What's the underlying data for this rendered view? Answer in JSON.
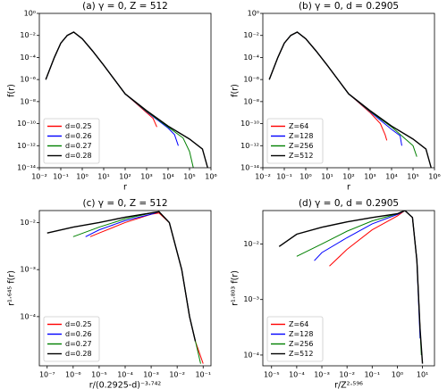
{
  "chart_data": [
    {
      "type": "line",
      "title": "(a) γ = 0, Z = 512",
      "xlabel": "r",
      "ylabel": "f(r)",
      "log_x": true,
      "log_y": true,
      "legend": "lower left",
      "xlim": [
        0.01,
        1000000
      ],
      "ylim": [
        1e-14,
        1
      ],
      "xticks": [
        {
          "value": 0.01,
          "label": "10⁻²"
        },
        {
          "value": 0.1,
          "label": "10⁻¹"
        },
        {
          "value": 1,
          "label": "10⁰"
        },
        {
          "value": 10,
          "label": "10¹"
        },
        {
          "value": 100,
          "label": "10²"
        },
        {
          "value": 1000,
          "label": "10³"
        },
        {
          "value": 10000,
          "label": "10⁴"
        },
        {
          "value": 100000,
          "label": "10⁵"
        },
        {
          "value": 1000000,
          "label": "10⁶"
        }
      ],
      "yticks": [
        {
          "value": 1,
          "label": "10⁰"
        },
        {
          "value": 0.01,
          "label": "10⁻²"
        },
        {
          "value": 0.0001,
          "label": "10⁻⁴"
        },
        {
          "value": 1e-06,
          "label": "10⁻⁶"
        },
        {
          "value": 1e-08,
          "label": "10⁻⁸"
        },
        {
          "value": 1e-10,
          "label": "10⁻¹⁰"
        },
        {
          "value": 1e-12,
          "label": "10⁻¹²"
        },
        {
          "value": 1e-14,
          "label": "10⁻¹⁴"
        }
      ],
      "series": [
        {
          "name": "d=0.25",
          "color": "red",
          "x": [
            0.02,
            0.05,
            0.1,
            0.2,
            0.4,
            1,
            3,
            10,
            100,
            1000,
            2000,
            3000
          ],
          "values": [
            1e-06,
            0.0001,
            0.002,
            0.01,
            0.02,
            0.005,
            0.0004,
            2e-05,
            5e-08,
            1e-09,
            3e-10,
            5e-11
          ]
        },
        {
          "name": "d=0.26",
          "color": "blue",
          "x": [
            0.02,
            0.05,
            0.1,
            0.2,
            0.4,
            1,
            3,
            10,
            100,
            1000,
            10000,
            20000,
            30000
          ],
          "values": [
            1e-06,
            0.0001,
            0.002,
            0.01,
            0.02,
            0.005,
            0.0004,
            2e-05,
            5e-08,
            1.2e-09,
            4e-11,
            1e-11,
            1e-12
          ]
        },
        {
          "name": "d=0.27",
          "color": "green",
          "x": [
            0.02,
            0.05,
            0.1,
            0.2,
            0.4,
            1,
            3,
            10,
            100,
            1000,
            10000,
            50000,
            100000,
            150000
          ],
          "values": [
            1e-06,
            0.0001,
            0.002,
            0.01,
            0.02,
            0.005,
            0.0004,
            2e-05,
            5e-08,
            1.3e-09,
            5e-11,
            5e-12,
            3e-13,
            1e-14
          ]
        },
        {
          "name": "d=0.28",
          "color": "black",
          "x": [
            0.02,
            0.05,
            0.1,
            0.2,
            0.4,
            1,
            3,
            10,
            100,
            1000,
            10000,
            100000,
            400000,
            700000
          ],
          "values": [
            1e-06,
            0.0001,
            0.002,
            0.01,
            0.02,
            0.005,
            0.0004,
            2e-05,
            5e-08,
            1.5e-09,
            6e-11,
            4e-12,
            5e-13,
            1e-14
          ]
        }
      ]
    },
    {
      "type": "line",
      "title": "(b) γ = 0, d = 0.2905",
      "xlabel": "r",
      "ylabel": "f(r)",
      "log_x": true,
      "log_y": true,
      "legend": "lower left",
      "xlim": [
        0.01,
        1000000
      ],
      "ylim": [
        1e-14,
        1
      ],
      "xticks": [
        {
          "value": 0.01,
          "label": "10⁻²"
        },
        {
          "value": 0.1,
          "label": "10⁻¹"
        },
        {
          "value": 1,
          "label": "10⁰"
        },
        {
          "value": 10,
          "label": "10¹"
        },
        {
          "value": 100,
          "label": "10²"
        },
        {
          "value": 1000,
          "label": "10³"
        },
        {
          "value": 10000,
          "label": "10⁴"
        },
        {
          "value": 100000,
          "label": "10⁵"
        },
        {
          "value": 1000000,
          "label": "10⁶"
        }
      ],
      "yticks": [
        {
          "value": 1,
          "label": "10⁰"
        },
        {
          "value": 0.01,
          "label": "10⁻²"
        },
        {
          "value": 0.0001,
          "label": "10⁻⁴"
        },
        {
          "value": 1e-06,
          "label": "10⁻⁶"
        },
        {
          "value": 1e-08,
          "label": "10⁻⁸"
        },
        {
          "value": 1e-10,
          "label": "10⁻¹⁰"
        },
        {
          "value": 1e-12,
          "label": "10⁻¹²"
        },
        {
          "value": 1e-14,
          "label": "10⁻¹⁴"
        }
      ],
      "series": [
        {
          "name": "Z=64",
          "color": "red",
          "x": [
            0.02,
            0.05,
            0.1,
            0.2,
            0.4,
            1,
            3,
            10,
            100,
            1000,
            3000,
            5000,
            6000
          ],
          "values": [
            1e-06,
            0.0001,
            0.002,
            0.01,
            0.02,
            0.005,
            0.0004,
            2e-05,
            5e-08,
            1e-09,
            1e-10,
            1e-11,
            3e-12
          ]
        },
        {
          "name": "Z=128",
          "color": "blue",
          "x": [
            0.02,
            0.05,
            0.1,
            0.2,
            0.4,
            1,
            3,
            10,
            100,
            1000,
            10000,
            25000,
            30000
          ],
          "values": [
            1e-06,
            0.0001,
            0.002,
            0.01,
            0.02,
            0.005,
            0.0004,
            2e-05,
            5e-08,
            1.2e-09,
            3e-11,
            8e-12,
            1e-12
          ]
        },
        {
          "name": "Z=256",
          "color": "green",
          "x": [
            0.02,
            0.05,
            0.1,
            0.2,
            0.4,
            1,
            3,
            10,
            100,
            1000,
            10000,
            100000,
            150000
          ],
          "values": [
            1e-06,
            0.0001,
            0.002,
            0.01,
            0.02,
            0.005,
            0.0004,
            2e-05,
            5e-08,
            1.3e-09,
            5e-11,
            1e-12,
            1e-13
          ]
        },
        {
          "name": "Z=512",
          "color": "black",
          "x": [
            0.02,
            0.05,
            0.1,
            0.2,
            0.4,
            1,
            3,
            10,
            100,
            1000,
            10000,
            100000,
            400000,
            700000
          ],
          "values": [
            1e-06,
            0.0001,
            0.002,
            0.01,
            0.02,
            0.005,
            0.0004,
            2e-05,
            5e-08,
            1.5e-09,
            6e-11,
            4e-12,
            5e-13,
            1e-14
          ]
        }
      ]
    },
    {
      "type": "line",
      "title": "(c) γ = 0, Z = 512",
      "xlabel": "r/(0.2925-d)⁻³·⁷⁴²",
      "ylabel": "r¹·⁶⁴⁵ f(r)",
      "log_x": true,
      "log_y": true,
      "legend": "lower left",
      "xlim": [
        5e-08,
        0.2
      ],
      "ylim": [
        9e-06,
        0.018
      ],
      "xticks": [
        {
          "value": 1e-07,
          "label": "10⁻⁷"
        },
        {
          "value": 1e-06,
          "label": "10⁻⁶"
        },
        {
          "value": 1e-05,
          "label": "10⁻⁵"
        },
        {
          "value": 0.0001,
          "label": "10⁻⁴"
        },
        {
          "value": 0.001,
          "label": "10⁻³"
        },
        {
          "value": 0.01,
          "label": "10⁻²"
        },
        {
          "value": 0.1,
          "label": "10⁻¹"
        }
      ],
      "yticks": [
        {
          "value": 0.0001,
          "label": "10⁻⁴"
        },
        {
          "value": 0.001,
          "label": "10⁻³"
        },
        {
          "value": 0.01,
          "label": "10⁻²"
        }
      ],
      "series": [
        {
          "name": "d=0.25",
          "color": "red",
          "x": [
            4.5e-06,
            1e-05,
            0.0001,
            0.001,
            0.002,
            0.005,
            0.015,
            0.03,
            0.05,
            0.1
          ],
          "values": [
            0.005,
            0.006,
            0.01,
            0.015,
            0.016,
            0.01,
            0.001,
            0.0001,
            3e-05,
            1e-05
          ]
        },
        {
          "name": "d=0.26",
          "color": "blue",
          "x": [
            3e-06,
            1e-05,
            0.0001,
            0.001,
            0.002,
            0.005,
            0.015,
            0.03,
            0.05
          ],
          "values": [
            0.005,
            0.007,
            0.011,
            0.015,
            0.017,
            0.01,
            0.001,
            0.0001,
            3e-05
          ]
        },
        {
          "name": "d=0.27",
          "color": "green",
          "x": [
            1e-06,
            1e-05,
            0.0001,
            0.001,
            0.002,
            0.005,
            0.015,
            0.03,
            0.06,
            0.08
          ],
          "values": [
            0.005,
            0.008,
            0.012,
            0.016,
            0.017,
            0.01,
            0.001,
            0.0001,
            2e-05,
            1e-05
          ]
        },
        {
          "name": "d=0.28",
          "color": "black",
          "x": [
            1e-07,
            1e-06,
            1e-05,
            0.0001,
            0.001,
            0.002,
            0.005,
            0.015,
            0.03,
            0.05
          ],
          "values": [
            0.006,
            0.008,
            0.01,
            0.013,
            0.016,
            0.017,
            0.01,
            0.001,
            0.0001,
            3e-05
          ]
        }
      ]
    },
    {
      "type": "line",
      "title": "(d) γ = 0, d = 0.2905",
      "xlabel": "r/Z²·⁵⁹⁶",
      "ylabel": "r¹·⁸⁰³ f(r)",
      "log_x": true,
      "log_y": true,
      "legend": "lower left",
      "xlim": [
        4.5e-06,
        30
      ],
      "ylim": [
        6.4e-05,
        0.04
      ],
      "xticks": [
        {
          "value": 1e-05,
          "label": "10⁻⁵"
        },
        {
          "value": 0.0001,
          "label": "10⁻⁴"
        },
        {
          "value": 0.001,
          "label": "10⁻³"
        },
        {
          "value": 0.01,
          "label": "10⁻²"
        },
        {
          "value": 0.1,
          "label": "10⁻¹"
        },
        {
          "value": 1,
          "label": "10⁰"
        },
        {
          "value": 10,
          "label": "10¹"
        }
      ],
      "yticks": [
        {
          "value": 0.0001,
          "label": "10⁻⁴"
        },
        {
          "value": 0.001,
          "label": "10⁻³"
        },
        {
          "value": 0.01,
          "label": "10⁻²"
        }
      ],
      "series": [
        {
          "name": "Z=64",
          "color": "red",
          "x": [
            0.002,
            0.01,
            0.1,
            1,
            2,
            4,
            6,
            8
          ],
          "values": [
            0.004,
            0.008,
            0.018,
            0.032,
            0.04,
            0.03,
            0.005,
            0.0003
          ]
        },
        {
          "name": "Z=128",
          "color": "blue",
          "x": [
            0.0005,
            0.001,
            0.01,
            0.1,
            1,
            2,
            4,
            6,
            8
          ],
          "values": [
            0.005,
            0.007,
            0.013,
            0.023,
            0.034,
            0.04,
            0.03,
            0.005,
            0.0002
          ]
        },
        {
          "name": "Z=256",
          "color": "green",
          "x": [
            0.0001,
            0.001,
            0.01,
            0.1,
            1,
            2,
            4,
            6,
            8,
            9
          ],
          "values": [
            0.006,
            0.01,
            0.017,
            0.026,
            0.035,
            0.04,
            0.03,
            0.005,
            0.0003,
            0.0001
          ]
        },
        {
          "name": "Z=512",
          "color": "black",
          "x": [
            2e-05,
            0.0001,
            0.001,
            0.01,
            0.1,
            1,
            2,
            4,
            6,
            8,
            10
          ],
          "values": [
            0.009,
            0.015,
            0.02,
            0.025,
            0.03,
            0.035,
            0.04,
            0.03,
            0.005,
            0.0003,
            7e-05
          ]
        }
      ]
    }
  ]
}
